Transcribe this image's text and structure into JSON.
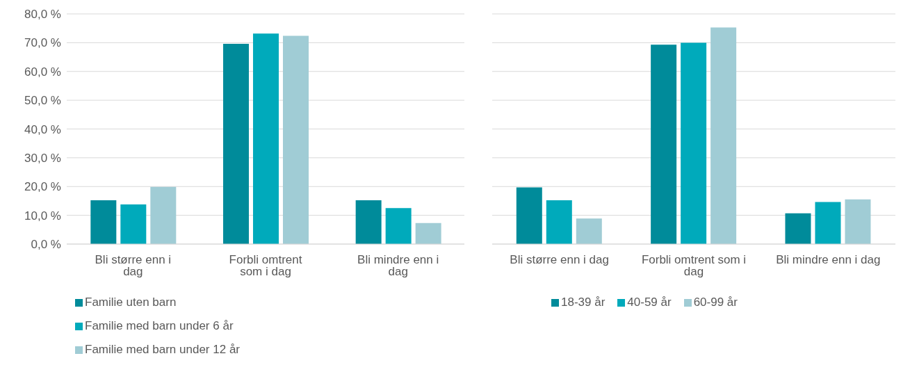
{
  "chart_data": [
    {
      "type": "bar",
      "categories": [
        "Bli større enn i dag",
        "Forbli omtrent som i dag",
        "Bli mindre enn i dag"
      ],
      "series": [
        {
          "name": "Familie uten barn",
          "color": "#008b9a",
          "values": [
            15.2,
            69.6,
            15.2
          ]
        },
        {
          "name": "Familie med barn under 6 år",
          "color": "#00aabb",
          "values": [
            13.8,
            73.2,
            12.5
          ]
        },
        {
          "name": "Familie med barn under 12 år",
          "color": "#a0ccd5",
          "values": [
            19.9,
            72.4,
            7.3
          ]
        }
      ],
      "ylim": [
        0,
        80
      ],
      "yticks": [
        {
          "value": 0,
          "label": "0,0 %"
        },
        {
          "value": 10,
          "label": "10,0 %"
        },
        {
          "value": 20,
          "label": "20,0 %"
        },
        {
          "value": 30,
          "label": "30,0 %"
        },
        {
          "value": 40,
          "label": "40,0 %"
        },
        {
          "value": 50,
          "label": "50,0 %"
        },
        {
          "value": 60,
          "label": "60,0 %"
        },
        {
          "value": 70,
          "label": "70,0 %"
        },
        {
          "value": 80,
          "label": "80,0 %"
        }
      ],
      "grid": "y",
      "legend": "bottom"
    },
    {
      "type": "bar",
      "categories": [
        "Bli større enn i dag",
        "Forbli omtrent som i dag",
        "Bli mindre enn i dag"
      ],
      "series": [
        {
          "name": "18-39 år",
          "color": "#008b9a",
          "values": [
            19.7,
            69.3,
            10.7
          ]
        },
        {
          "name": "40-59 år",
          "color": "#00aabb",
          "values": [
            15.2,
            70.0,
            14.6
          ]
        },
        {
          "name": "60-99 år",
          "color": "#a0ccd5",
          "values": [
            8.9,
            75.3,
            15.5
          ]
        }
      ],
      "ylim": [
        0,
        80
      ],
      "yticks": [
        0,
        10,
        20,
        30,
        40,
        50,
        60,
        70,
        80
      ],
      "tick_labels": "x",
      "grid": "y",
      "legend": "bottom"
    }
  ]
}
